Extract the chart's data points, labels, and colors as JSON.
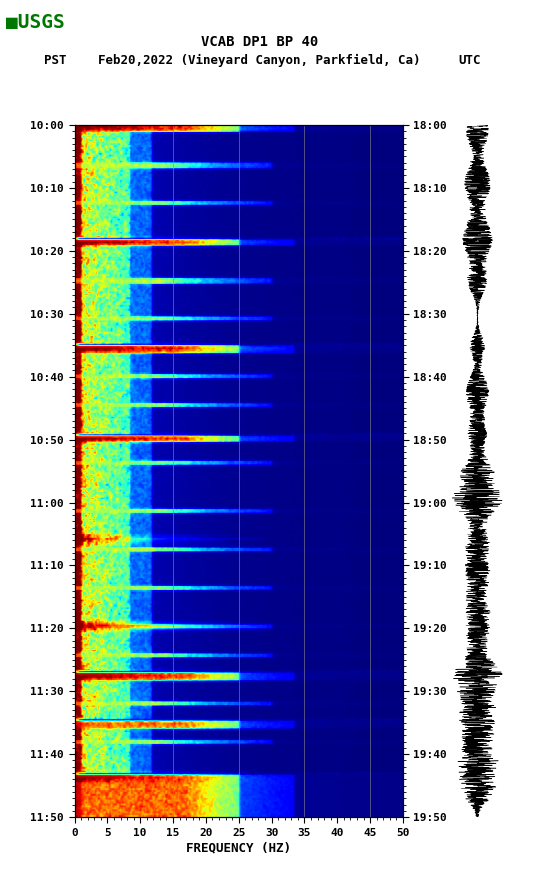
{
  "title_line1": "VCAB DP1 BP 40",
  "title_line2_pst": "PST",
  "title_line2_date": "Feb20,2022 (Vineyard Canyon, Parkfield, Ca)",
  "title_line2_utc": "UTC",
  "xlabel": "FREQUENCY (HZ)",
  "freq_min": 0,
  "freq_max": 50,
  "freq_ticks": [
    0,
    5,
    10,
    15,
    20,
    25,
    30,
    35,
    40,
    45,
    50
  ],
  "left_time_labels": [
    "10:00",
    "10:10",
    "10:20",
    "10:30",
    "10:40",
    "10:50",
    "11:00",
    "11:10",
    "11:20",
    "11:30",
    "11:40",
    "11:50"
  ],
  "right_time_labels": [
    "18:00",
    "18:10",
    "18:20",
    "18:30",
    "18:40",
    "18:50",
    "19:00",
    "19:10",
    "19:20",
    "19:30",
    "19:40",
    "19:50"
  ],
  "n_time_steps": 360,
  "n_freq_steps": 300,
  "bg_color": "white",
  "spectrogram_cmap": "jet",
  "vertical_lines_freq": [
    15,
    25,
    35,
    45
  ],
  "vertical_line_color": "#888888",
  "usgs_logo_color": "#007700",
  "font_family": "monospace",
  "event_rows_strong": [
    0,
    1,
    2,
    3,
    60,
    61,
    62,
    115,
    116,
    117,
    118,
    162,
    163,
    164,
    285,
    286,
    287,
    288,
    310,
    311,
    312,
    313,
    338,
    339,
    340,
    341,
    342,
    343,
    344,
    345,
    346,
    347,
    348,
    349,
    350,
    351,
    352,
    353,
    354,
    355,
    356,
    357,
    358,
    359
  ],
  "event_rows_medium": [
    20,
    21,
    22,
    40,
    41,
    80,
    81,
    82,
    100,
    101,
    130,
    131,
    145,
    146,
    175,
    176,
    200,
    201,
    220,
    221,
    240,
    241,
    260,
    261,
    275,
    276,
    300,
    301,
    320,
    321
  ],
  "dark_rows": [
    59,
    114,
    161,
    284,
    309,
    337
  ]
}
